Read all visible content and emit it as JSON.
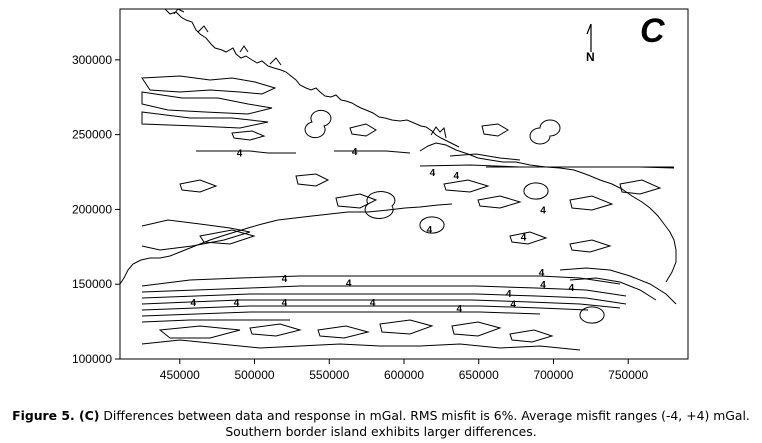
{
  "figure": {
    "panel_label": "C",
    "north_label": "N",
    "x_axis": {
      "ticks": [
        {
          "value": 450000,
          "label": "450000"
        },
        {
          "value": 500000,
          "label": "500000"
        },
        {
          "value": 550000,
          "label": "550000"
        },
        {
          "value": 600000,
          "label": "600000"
        },
        {
          "value": 650000,
          "label": "650000"
        },
        {
          "value": 700000,
          "label": "700000"
        },
        {
          "value": 750000,
          "label": "750000"
        }
      ],
      "range": [
        410000,
        790000
      ]
    },
    "y_axis": {
      "ticks": [
        {
          "value": 100000,
          "label": "100000"
        },
        {
          "value": 150000,
          "label": "150000"
        },
        {
          "value": 200000,
          "label": "200000"
        },
        {
          "value": 250000,
          "label": "250000"
        },
        {
          "value": 300000,
          "label": "300000"
        }
      ],
      "range": [
        100000,
        334000
      ]
    },
    "contour_labels": [
      {
        "text": "4",
        "x": 490000,
        "y": 238000
      },
      {
        "text": "4",
        "x": 567000,
        "y": 239000
      },
      {
        "text": "4",
        "x": 619000,
        "y": 225000
      },
      {
        "text": "4",
        "x": 635000,
        "y": 223000
      },
      {
        "text": "4",
        "x": 617000,
        "y": 187000
      },
      {
        "text": "4",
        "x": 693000,
        "y": 200000
      },
      {
        "text": "4",
        "x": 680000,
        "y": 182000
      },
      {
        "text": "4",
        "x": 520000,
        "y": 154000
      },
      {
        "text": "4",
        "x": 563000,
        "y": 151000
      },
      {
        "text": "4",
        "x": 459000,
        "y": 138000
      },
      {
        "text": "4",
        "x": 488000,
        "y": 138000
      },
      {
        "text": "4",
        "x": 520000,
        "y": 138000
      },
      {
        "text": "4",
        "x": 579000,
        "y": 138000
      },
      {
        "text": "4",
        "x": 637000,
        "y": 134000
      },
      {
        "text": "4",
        "x": 670000,
        "y": 144000
      },
      {
        "text": "4",
        "x": 673000,
        "y": 137000
      },
      {
        "text": "4",
        "x": 692000,
        "y": 158000
      },
      {
        "text": "4",
        "x": 693000,
        "y": 150000
      },
      {
        "text": "4",
        "x": 712000,
        "y": 148000
      }
    ]
  },
  "caption": {
    "label": "Figure 5. (C)",
    "text": " Differences between data and response in mGal. RMS misfit is 6%. Average misfit ranges (-4, +4) mGal. Southern border island exhibits larger differences."
  }
}
